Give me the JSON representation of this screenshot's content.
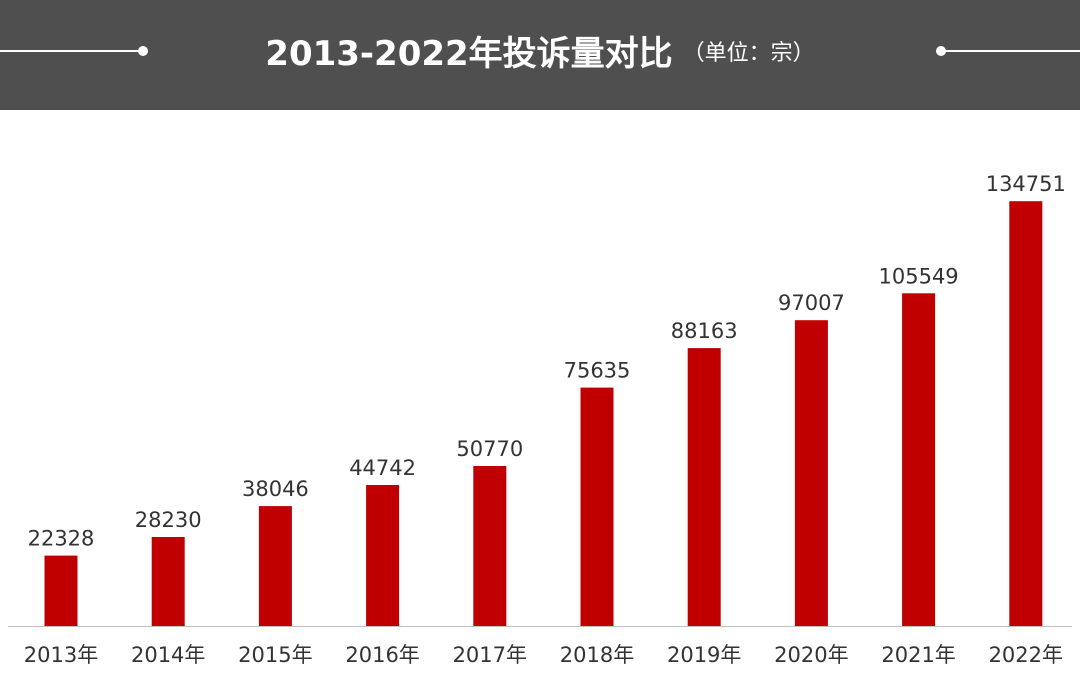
{
  "header": {
    "title": "2013-2022年投诉量对比",
    "unit": "（单位：宗）"
  },
  "colors": {
    "header_bg": "#4f4f4f",
    "bar": "#c00000",
    "text": "#333333"
  },
  "chart_data": {
    "type": "bar",
    "title": "2013-2022年投诉量对比",
    "unit": "（单位：宗）",
    "categories": [
      "2013年",
      "2014年",
      "2015年",
      "2016年",
      "2017年",
      "2018年",
      "2019年",
      "2020年",
      "2021年",
      "2022年"
    ],
    "values": [
      22328,
      28230,
      38046,
      44742,
      50770,
      75635,
      88163,
      97007,
      105549,
      134751
    ],
    "value_labels": [
      "22328",
      "28230",
      "38046",
      "44742",
      "50770",
      "75635",
      "88163",
      "97007",
      "105549",
      "134751"
    ],
    "ylim": [
      0,
      151000
    ],
    "grid": false,
    "legend": "none"
  }
}
